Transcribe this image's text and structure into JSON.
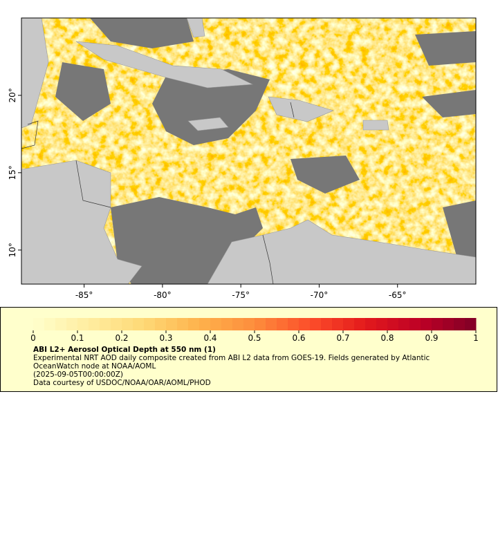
{
  "map": {
    "xlim": [
      -89,
      -60
    ],
    "ylim": [
      7.8,
      25
    ],
    "xticks": [
      {
        "value": -85,
        "label": "-85°"
      },
      {
        "value": -80,
        "label": "-80°"
      },
      {
        "value": -75,
        "label": "-75°"
      },
      {
        "value": -70,
        "label": "-70°"
      },
      {
        "value": -65,
        "label": "-65°"
      }
    ],
    "yticks": [
      {
        "value": 10,
        "label": "10°"
      },
      {
        "value": 15,
        "label": "15°"
      },
      {
        "value": 20,
        "label": "20°"
      }
    ]
  },
  "legend": {
    "colorbar": {
      "lim": [
        0,
        1
      ],
      "ticks": [
        0,
        0.1,
        0.2,
        0.3,
        0.4,
        0.5,
        0.6,
        0.7,
        0.8,
        0.9,
        1
      ],
      "colors": [
        "#ffffcc",
        "#ffeda0",
        "#fed976",
        "#feb24c",
        "#fd8d3c",
        "#fc4e2a",
        "#e31a1c",
        "#bd0026",
        "#800026"
      ]
    },
    "title": "ABI L2+ Aerosol Optical Depth at 550 nm (1)",
    "description": "Experimental NRT AOD daily composite created from ABI L2 data from GOES-19. Fields generated by Atlantic OceanWatch node at NOAA/AOML",
    "time": "(2025-09-05T00:00:00Z)",
    "credit": "Data courtesy of USDOC/NOAA/OAR/AOML/PHOD"
  }
}
